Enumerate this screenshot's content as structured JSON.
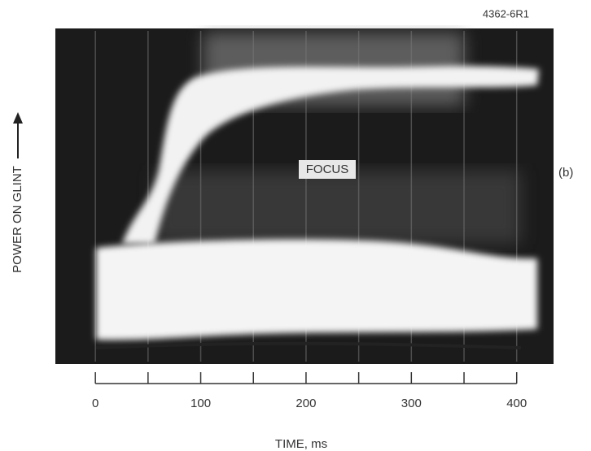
{
  "chart_data": {
    "type": "oscillogram",
    "figure_id": "4362-6R1",
    "panel_label": "(b)",
    "annotation": "FOCUS",
    "y_label": "POWER ON GLINT",
    "x_label": "TIME, ms",
    "xlim": [
      -38,
      435
    ],
    "xticks": [
      0,
      100,
      200,
      300,
      400
    ],
    "xminor_ticks": [
      50,
      150,
      250,
      350
    ],
    "grid": true
  }
}
